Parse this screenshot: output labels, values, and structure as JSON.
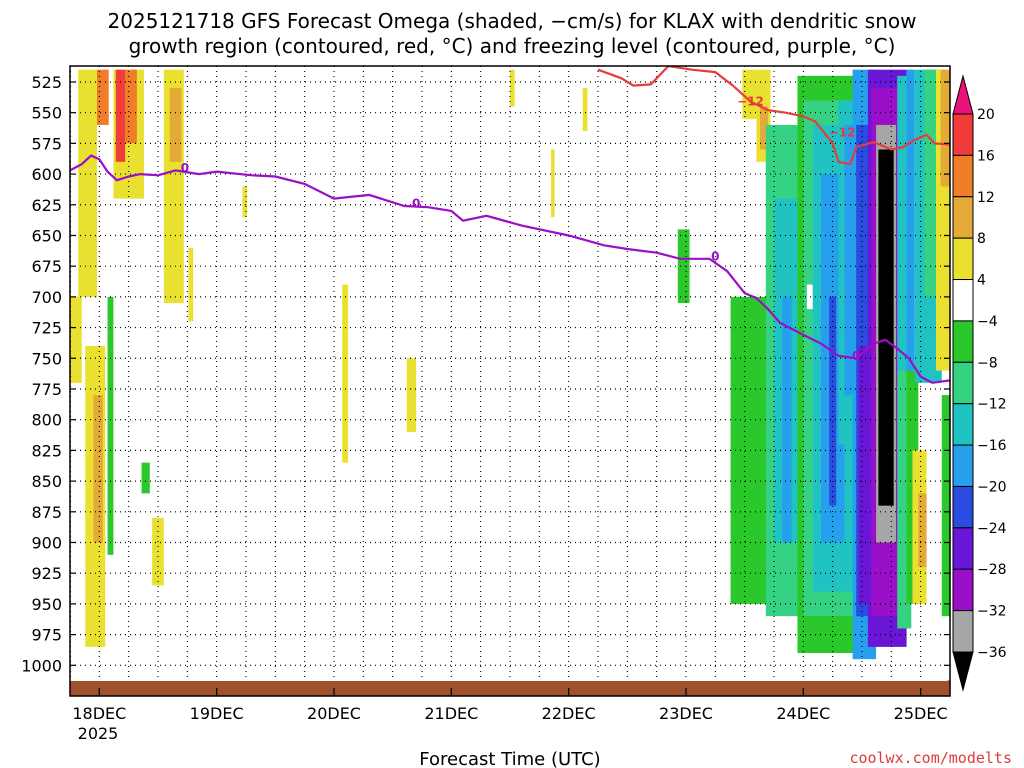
{
  "chart_data": {
    "type": "heatmap",
    "title_lines": [
      "2025121718 GFS Forecast Omega (shaded, −cm/s) for KLAX with dendritic snow",
      "growth region (contoured, red, °C) and freezing level (contoured, purple, °C)"
    ],
    "xlabel": "Forecast Time (UTC)",
    "x_ticks": [
      "18DEC",
      "19DEC",
      "20DEC",
      "21DEC",
      "22DEC",
      "23DEC",
      "24DEC",
      "25DEC"
    ],
    "x_year": "2025",
    "x_range_days": [
      17.75,
      25.25
    ],
    "y_axis": "pressure (hPa), inverted",
    "y_ticks": [
      525,
      550,
      575,
      600,
      625,
      650,
      675,
      700,
      725,
      750,
      775,
      800,
      825,
      850,
      875,
      900,
      925,
      950,
      975,
      1000
    ],
    "y_range": [
      1025,
      512
    ],
    "grid": "dotted",
    "colorbar": {
      "position": "right",
      "labels": [
        "20",
        "16",
        "12",
        "8",
        "4",
        "−4",
        "−8",
        "−12",
        "−16",
        "−20",
        "−24",
        "−28",
        "−32",
        "−36"
      ],
      "bands": [
        {
          "lo": 20,
          "hi": 99,
          "color": "#e8127a"
        },
        {
          "lo": 16,
          "hi": 20,
          "color": "#f23c3c"
        },
        {
          "lo": 12,
          "hi": 16,
          "color": "#f07e28"
        },
        {
          "lo": 8,
          "hi": 12,
          "color": "#e3aa38"
        },
        {
          "lo": 4,
          "hi": 8,
          "color": "#e9e030"
        },
        {
          "lo": -4,
          "hi": 4,
          "color": "#ffffff"
        },
        {
          "lo": -8,
          "hi": -4,
          "color": "#2ac82a"
        },
        {
          "lo": -12,
          "hi": -8,
          "color": "#34d282"
        },
        {
          "lo": -16,
          "hi": -12,
          "color": "#20c2c2"
        },
        {
          "lo": -20,
          "hi": -16,
          "color": "#26a0ec"
        },
        {
          "lo": -24,
          "hi": -20,
          "color": "#2a4ce0"
        },
        {
          "lo": -28,
          "hi": -24,
          "color": "#6a16d6"
        },
        {
          "lo": -32,
          "hi": -28,
          "color": "#9a10c8"
        },
        {
          "lo": -36,
          "hi": -32,
          "color": "#a6a6a6"
        },
        {
          "lo": -99,
          "hi": -36,
          "color": "#000000"
        }
      ]
    },
    "omega_regions": [
      {
        "t0": 17.75,
        "t1": 17.85,
        "p0": 700,
        "p1": 770,
        "value": 5
      },
      {
        "t0": 17.82,
        "t1": 17.98,
        "p0": 515,
        "p1": 700,
        "value": 5
      },
      {
        "t0": 17.98,
        "t1": 18.08,
        "p0": 515,
        "p1": 560,
        "value": 14
      },
      {
        "t0": 17.88,
        "t1": 18.05,
        "p0": 740,
        "p1": 985,
        "value": 5
      },
      {
        "t0": 17.95,
        "t1": 18.03,
        "p0": 780,
        "p1": 900,
        "value": 9
      },
      {
        "t0": 18.07,
        "t1": 18.12,
        "p0": 700,
        "p1": 910,
        "value": -6
      },
      {
        "t0": 18.12,
        "t1": 18.38,
        "p0": 515,
        "p1": 620,
        "value": 6
      },
      {
        "t0": 18.14,
        "t1": 18.22,
        "p0": 515,
        "p1": 590,
        "value": 18
      },
      {
        "t0": 18.22,
        "t1": 18.32,
        "p0": 515,
        "p1": 575,
        "value": 13
      },
      {
        "t0": 18.36,
        "t1": 18.43,
        "p0": 835,
        "p1": 860,
        "value": -6
      },
      {
        "t0": 18.45,
        "t1": 18.55,
        "p0": 880,
        "p1": 935,
        "value": 5
      },
      {
        "t0": 18.55,
        "t1": 18.72,
        "p0": 515,
        "p1": 705,
        "value": 5
      },
      {
        "t0": 18.6,
        "t1": 18.7,
        "p0": 530,
        "p1": 590,
        "value": 10
      },
      {
        "t0": 18.76,
        "t1": 18.8,
        "p0": 660,
        "p1": 720,
        "value": 5
      },
      {
        "t0": 19.22,
        "t1": 19.26,
        "p0": 610,
        "p1": 635,
        "value": 5
      },
      {
        "t0": 20.07,
        "t1": 20.12,
        "p0": 690,
        "p1": 835,
        "value": 5
      },
      {
        "t0": 20.62,
        "t1": 20.7,
        "p0": 750,
        "p1": 810,
        "value": 5
      },
      {
        "t0": 21.5,
        "t1": 21.54,
        "p0": 515,
        "p1": 545,
        "value": 5
      },
      {
        "t0": 21.85,
        "t1": 21.88,
        "p0": 580,
        "p1": 635,
        "value": 5
      },
      {
        "t0": 22.12,
        "t1": 22.16,
        "p0": 530,
        "p1": 565,
        "value": 5
      },
      {
        "t0": 22.93,
        "t1": 23.03,
        "p0": 645,
        "p1": 705,
        "value": -6
      },
      {
        "t0": 23.48,
        "t1": 23.6,
        "p0": 515,
        "p1": 555,
        "value": 5
      },
      {
        "t0": 23.6,
        "t1": 23.72,
        "p0": 515,
        "p1": 590,
        "value": 6
      },
      {
        "t0": 23.63,
        "t1": 23.7,
        "p0": 545,
        "p1": 580,
        "value": 10
      },
      {
        "t0": 23.38,
        "t1": 23.72,
        "p0": 700,
        "p1": 950,
        "value": -6
      },
      {
        "t0": 23.68,
        "t1": 24.08,
        "p0": 560,
        "p1": 960,
        "value": -10
      },
      {
        "t0": 23.75,
        "t1": 23.95,
        "p0": 620,
        "p1": 900,
        "value": -14
      },
      {
        "t0": 23.82,
        "t1": 23.9,
        "p0": 700,
        "p1": 900,
        "value": -18
      },
      {
        "t0": 23.95,
        "t1": 24.5,
        "p0": 520,
        "p1": 990,
        "value": -6
      },
      {
        "t0": 24.0,
        "t1": 24.45,
        "p0": 540,
        "p1": 960,
        "value": -10
      },
      {
        "t0": 24.08,
        "t1": 24.42,
        "p0": 560,
        "p1": 940,
        "value": -14
      },
      {
        "t0": 24.15,
        "t1": 24.35,
        "p0": 600,
        "p1": 900,
        "value": -18
      },
      {
        "t0": 24.22,
        "t1": 24.28,
        "p0": 700,
        "p1": 870,
        "value": -22
      },
      {
        "t0": 24.3,
        "t1": 24.42,
        "p0": 540,
        "p1": 820,
        "value": -14
      },
      {
        "t0": 24.35,
        "t1": 24.45,
        "p0": 560,
        "p1": 780,
        "value": -18
      },
      {
        "t0": 24.42,
        "t1": 24.62,
        "p0": 515,
        "p1": 995,
        "value": -18
      },
      {
        "t0": 24.45,
        "t1": 24.6,
        "p0": 560,
        "p1": 960,
        "value": -22
      },
      {
        "t0": 24.47,
        "t1": 24.58,
        "p0": 740,
        "p1": 950,
        "value": -26
      },
      {
        "t0": 24.55,
        "t1": 24.88,
        "p0": 515,
        "p1": 985,
        "value": -26
      },
      {
        "t0": 24.58,
        "t1": 24.85,
        "p0": 530,
        "p1": 960,
        "value": -30
      },
      {
        "t0": 24.62,
        "t1": 24.79,
        "p0": 560,
        "p1": 900,
        "value": -34
      },
      {
        "t0": 24.64,
        "t1": 24.77,
        "p0": 580,
        "p1": 870,
        "value": -40
      },
      {
        "t0": 24.8,
        "t1": 24.92,
        "p0": 520,
        "p1": 760,
        "value": -14
      },
      {
        "t0": 24.8,
        "t1": 24.92,
        "p0": 760,
        "p1": 970,
        "value": -10
      },
      {
        "t0": 24.88,
        "t1": 24.95,
        "p0": 515,
        "p1": 760,
        "value": -18
      },
      {
        "t0": 24.88,
        "t1": 24.98,
        "p0": 760,
        "p1": 950,
        "value": -6
      },
      {
        "t0": 24.93,
        "t1": 25.05,
        "p0": 825,
        "p1": 950,
        "value": 5
      },
      {
        "t0": 24.98,
        "t1": 25.05,
        "p0": 860,
        "p1": 920,
        "value": 10
      },
      {
        "t0": 24.95,
        "t1": 25.18,
        "p0": 515,
        "p1": 770,
        "value": -14
      },
      {
        "t0": 25.03,
        "t1": 25.2,
        "p0": 515,
        "p1": 700,
        "value": -10
      },
      {
        "t0": 25.13,
        "t1": 25.25,
        "p0": 515,
        "p1": 760,
        "value": 5
      },
      {
        "t0": 25.17,
        "t1": 25.25,
        "p0": 515,
        "p1": 610,
        "value": 9
      },
      {
        "t0": 25.18,
        "t1": 25.25,
        "p0": 780,
        "p1": 960,
        "value": -6
      },
      {
        "t0": 24.03,
        "t1": 24.08,
        "p0": 690,
        "p1": 710,
        "value": 0
      }
    ],
    "freezing_level": {
      "label": "0",
      "color": "#9b0fc8",
      "points": [
        [
          17.75,
          597
        ],
        [
          17.85,
          592
        ],
        [
          17.93,
          585
        ],
        [
          18.0,
          588
        ],
        [
          18.07,
          598
        ],
        [
          18.15,
          605
        ],
        [
          18.25,
          602
        ],
        [
          18.35,
          600
        ],
        [
          18.5,
          601
        ],
        [
          18.65,
          597
        ],
        [
          18.85,
          600
        ],
        [
          19.0,
          598
        ],
        [
          19.3,
          601
        ],
        [
          19.5,
          602
        ],
        [
          19.75,
          608
        ],
        [
          20.0,
          620
        ],
        [
          20.3,
          617
        ],
        [
          20.6,
          626
        ],
        [
          20.8,
          627
        ],
        [
          21.0,
          630
        ],
        [
          21.1,
          638
        ],
        [
          21.3,
          634
        ],
        [
          21.6,
          642
        ],
        [
          22.0,
          650
        ],
        [
          22.3,
          658
        ],
        [
          22.5,
          661
        ],
        [
          22.75,
          664
        ],
        [
          22.95,
          669
        ],
        [
          23.1,
          669
        ],
        [
          23.2,
          669
        ],
        [
          23.35,
          679
        ],
        [
          23.5,
          697
        ],
        [
          23.6,
          701
        ],
        [
          23.7,
          710
        ],
        [
          23.8,
          721
        ],
        [
          24.0,
          731
        ],
        [
          24.15,
          738
        ],
        [
          24.3,
          748
        ],
        [
          24.45,
          750
        ],
        [
          24.6,
          738
        ],
        [
          24.7,
          735
        ],
        [
          24.8,
          742
        ],
        [
          24.9,
          750
        ],
        [
          25.0,
          765
        ],
        [
          25.1,
          770
        ],
        [
          25.25,
          768
        ]
      ]
    },
    "dendritic_contour": {
      "label": "−12",
      "color": "#e83c3c",
      "points": [
        [
          22.25,
          515
        ],
        [
          22.45,
          522
        ],
        [
          22.55,
          528
        ],
        [
          22.7,
          527
        ],
        [
          22.85,
          512
        ],
        [
          23.05,
          515
        ],
        [
          23.25,
          517
        ],
        [
          23.4,
          528
        ],
        [
          23.55,
          541
        ],
        [
          23.7,
          548
        ],
        [
          23.85,
          550
        ],
        [
          24.0,
          553
        ],
        [
          24.1,
          557
        ],
        [
          24.25,
          575
        ],
        [
          24.3,
          590
        ],
        [
          24.4,
          592
        ],
        [
          24.45,
          578
        ],
        [
          24.6,
          574
        ],
        [
          24.75,
          580
        ],
        [
          24.85,
          578
        ],
        [
          24.95,
          572
        ],
        [
          25.05,
          568
        ],
        [
          25.12,
          575
        ],
        [
          25.25,
          576
        ]
      ]
    },
    "terrain": {
      "color": "#a0522d",
      "p_top": 1012
    }
  },
  "footer": {
    "xlabel": "Forecast Time (UTC)",
    "credit": "coolwx.com/modelts"
  }
}
